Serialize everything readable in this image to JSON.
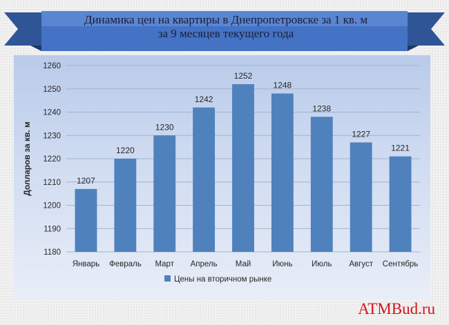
{
  "header": {
    "title_line1": "Динамика цен на квартиры в Днепропетровске за 1 кв. м",
    "title_line2": "за 9 месяцев текущего года"
  },
  "colors": {
    "bar": "#4f81bd",
    "ribbon": "#2f5597",
    "banner": "#4472c4",
    "watermark": "#d4111a"
  },
  "chart_data": {
    "type": "bar",
    "categories": [
      "Январь",
      "Февраль",
      "Март",
      "Апрель",
      "Май",
      "Июнь",
      "Июль",
      "Август",
      "Сентябрь"
    ],
    "series": [
      {
        "name": "Цены на вторичном рынке",
        "values": [
          1207,
          1220,
          1230,
          1242,
          1252,
          1248,
          1238,
          1227,
          1221
        ]
      }
    ],
    "ylabel": "Долларов за кв. м",
    "ylim": [
      1180,
      1260
    ],
    "yticks": [
      1180,
      1190,
      1200,
      1210,
      1220,
      1230,
      1240,
      1250,
      1260
    ],
    "grid": true,
    "data_labels": true,
    "legend_position": "bottom"
  },
  "watermark": "ATMBud.ru"
}
